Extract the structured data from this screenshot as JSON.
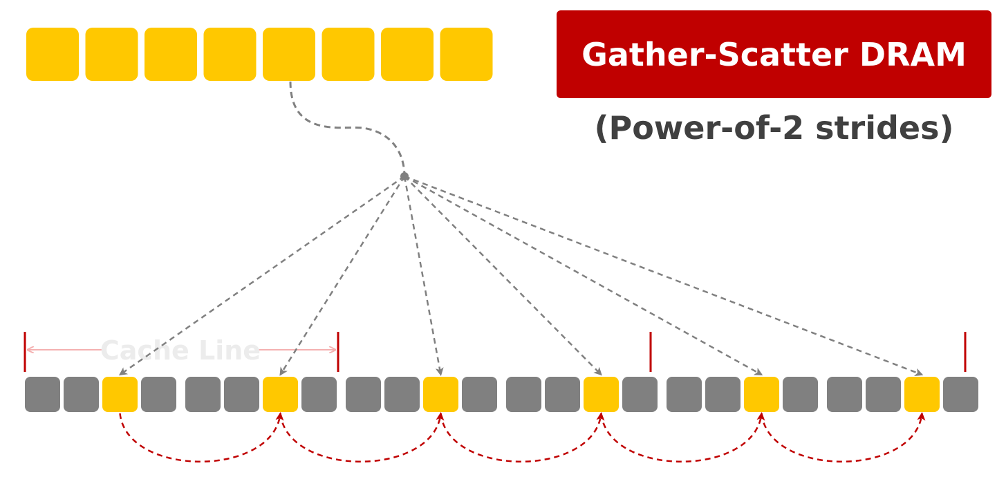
{
  "title": "Gather-Scatter DRAM",
  "subtitle": "(Power-of-2 strides)",
  "cache_line_label": "Cache Line",
  "colors": {
    "gathered": "#ffc800",
    "other": "#808080",
    "title_bg": "#c00000",
    "title_text": "#ffffff",
    "subtitle_text": "#404040",
    "gather_arrow": "#808080",
    "scatter_arrow": "#c00000",
    "cache_marker": "#c00000",
    "cache_arrow": "#f4b0b0",
    "cache_label": "#ececec"
  },
  "source_row": {
    "count": 8
  },
  "memory_row": {
    "count": 24,
    "cells_per_cache_line": 8,
    "gathered_indices": [
      2,
      6,
      10,
      14,
      18,
      22
    ]
  }
}
